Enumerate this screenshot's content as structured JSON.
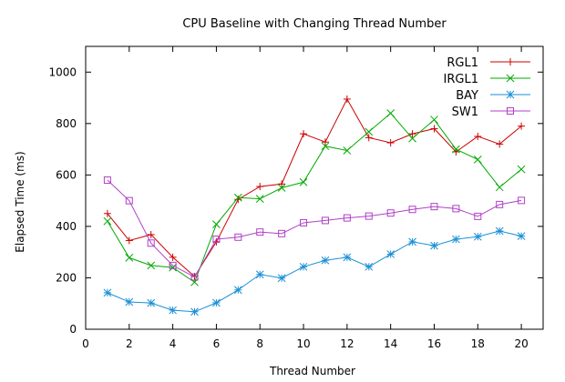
{
  "chart_data": {
    "type": "line",
    "title": "CPU Baseline with Changing Thread Number",
    "xlabel": "Thread Number",
    "ylabel": "Elapsed Time (ms)",
    "xlim": [
      0,
      21
    ],
    "ylim": [
      0,
      1100
    ],
    "x_ticks": [
      0,
      2,
      4,
      6,
      8,
      10,
      12,
      14,
      16,
      18,
      20
    ],
    "y_ticks": [
      0,
      200,
      400,
      600,
      800,
      1000
    ],
    "grid": false,
    "legend_position": "top-right",
    "x": [
      1,
      2,
      3,
      4,
      5,
      6,
      7,
      8,
      9,
      10,
      11,
      12,
      13,
      14,
      15,
      16,
      17,
      18,
      19,
      20
    ],
    "series": [
      {
        "name": "RGL1",
        "color": "#cc0000",
        "marker": "plus",
        "values": [
          450,
          345,
          368,
          280,
          205,
          340,
          505,
          555,
          565,
          760,
          728,
          895,
          745,
          725,
          760,
          780,
          690,
          750,
          720,
          790
        ]
      },
      {
        "name": "IRGL1",
        "color": "#00aa00",
        "marker": "cross",
        "values": [
          420,
          278,
          248,
          240,
          183,
          408,
          512,
          507,
          550,
          572,
          712,
          695,
          768,
          840,
          742,
          815,
          700,
          660,
          552,
          622
        ]
      },
      {
        "name": "BAY",
        "color": "#1a8fd6",
        "marker": "star",
        "values": [
          142,
          106,
          102,
          74,
          68,
          103,
          153,
          213,
          199,
          243,
          268,
          280,
          243,
          292,
          340,
          325,
          350,
          360,
          382,
          362
        ]
      },
      {
        "name": "SW1",
        "color": "#b040c8",
        "marker": "square",
        "values": [
          580,
          500,
          335,
          248,
          203,
          350,
          358,
          378,
          372,
          414,
          423,
          433,
          440,
          452,
          466,
          477,
          469,
          439,
          485,
          501
        ]
      }
    ]
  }
}
